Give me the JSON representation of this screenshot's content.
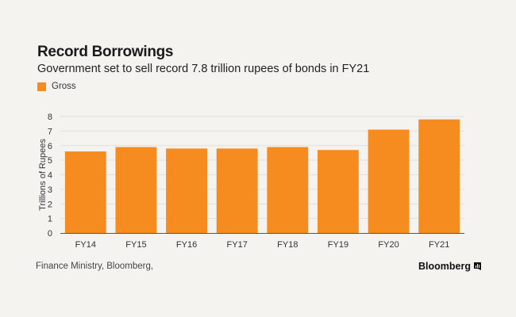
{
  "header": {
    "title": "Record Borrowings",
    "subtitle": "Government set to sell record 7.8 trillion rupees of bonds in FY21"
  },
  "legend": {
    "label": "Gross",
    "color": "#f68b1f"
  },
  "footer": {
    "source": "Finance Ministry, Bloomberg,",
    "brand": "Bloomberg",
    "brand_icon": "bloomberg-terminal-icon"
  },
  "chart_data": {
    "type": "bar",
    "categories": [
      "FY14",
      "FY15",
      "FY16",
      "FY17",
      "FY18",
      "FY19",
      "FY20",
      "FY21"
    ],
    "series": [
      {
        "name": "Gross",
        "values": [
          5.6,
          5.9,
          5.8,
          5.8,
          5.9,
          5.7,
          7.1,
          7.8
        ]
      }
    ],
    "ylabel": "Trillions of Rupees",
    "xlabel": "",
    "ylim": [
      0,
      8
    ],
    "yticks": [
      0,
      1,
      2,
      3,
      4,
      5,
      6,
      7,
      8
    ],
    "grid": true,
    "legend_position": "top-left",
    "bar_color": "#f68b1f"
  }
}
